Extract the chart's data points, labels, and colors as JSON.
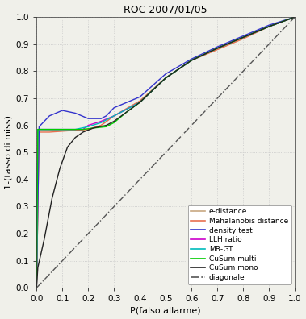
{
  "title": "ROC 2007/01/05",
  "xlabel": "P(falso allarme)",
  "ylabel": "1-(tasso di miss)",
  "xlim": [
    0,
    1
  ],
  "ylim": [
    0,
    1
  ],
  "xticks": [
    0,
    0.1,
    0.2,
    0.3,
    0.4,
    0.5,
    0.6,
    0.7,
    0.8,
    0.9,
    1
  ],
  "yticks": [
    0,
    0.1,
    0.2,
    0.3,
    0.4,
    0.5,
    0.6,
    0.7,
    0.8,
    0.9,
    1
  ],
  "curves": [
    {
      "key": "e_distance",
      "label": "e-distance",
      "color": "#c8a882",
      "lw": 1.0,
      "linestyle": "-",
      "points": [
        [
          0,
          0
        ],
        [
          0.01,
          0.58
        ],
        [
          0.2,
          0.585
        ],
        [
          0.25,
          0.6
        ],
        [
          0.3,
          0.635
        ],
        [
          0.4,
          0.69
        ],
        [
          0.5,
          0.775
        ],
        [
          0.6,
          0.84
        ],
        [
          0.7,
          0.88
        ],
        [
          0.8,
          0.92
        ],
        [
          0.9,
          0.965
        ],
        [
          1.0,
          1.0
        ]
      ]
    },
    {
      "key": "mahalanobis",
      "label": "Mahalanobis distance",
      "color": "#e87050",
      "lw": 1.0,
      "linestyle": "-",
      "points": [
        [
          0,
          0
        ],
        [
          0.01,
          0.575
        ],
        [
          0.05,
          0.575
        ],
        [
          0.2,
          0.585
        ],
        [
          0.25,
          0.6
        ],
        [
          0.3,
          0.635
        ],
        [
          0.4,
          0.69
        ],
        [
          0.5,
          0.775
        ],
        [
          0.6,
          0.84
        ],
        [
          0.7,
          0.88
        ],
        [
          0.8,
          0.92
        ],
        [
          0.9,
          0.965
        ],
        [
          1.0,
          1.0
        ]
      ]
    },
    {
      "key": "density",
      "label": "density test",
      "color": "#3333cc",
      "lw": 1.0,
      "linestyle": "-",
      "points": [
        [
          0,
          0
        ],
        [
          0.01,
          0.595
        ],
        [
          0.05,
          0.635
        ],
        [
          0.1,
          0.655
        ],
        [
          0.15,
          0.645
        ],
        [
          0.2,
          0.625
        ],
        [
          0.25,
          0.625
        ],
        [
          0.27,
          0.635
        ],
        [
          0.3,
          0.665
        ],
        [
          0.35,
          0.685
        ],
        [
          0.4,
          0.705
        ],
        [
          0.5,
          0.79
        ],
        [
          0.6,
          0.845
        ],
        [
          0.7,
          0.89
        ],
        [
          0.8,
          0.93
        ],
        [
          0.9,
          0.97
        ],
        [
          1.0,
          1.0
        ]
      ]
    },
    {
      "key": "llh",
      "label": "LLH ratio",
      "color": "#cc00cc",
      "lw": 1.0,
      "linestyle": "-",
      "points": [
        [
          0,
          0
        ],
        [
          0.005,
          0.585
        ],
        [
          0.1,
          0.585
        ],
        [
          0.18,
          0.585
        ],
        [
          0.2,
          0.6
        ],
        [
          0.25,
          0.615
        ],
        [
          0.3,
          0.635
        ],
        [
          0.35,
          0.66
        ],
        [
          0.4,
          0.685
        ],
        [
          0.5,
          0.775
        ],
        [
          0.6,
          0.84
        ],
        [
          0.7,
          0.885
        ],
        [
          0.8,
          0.925
        ],
        [
          0.9,
          0.965
        ],
        [
          1.0,
          1.0
        ]
      ]
    },
    {
      "key": "mbgt",
      "label": "MB-GT",
      "color": "#00bbbb",
      "lw": 1.0,
      "linestyle": "-",
      "points": [
        [
          0,
          0
        ],
        [
          0.005,
          0.585
        ],
        [
          0.1,
          0.585
        ],
        [
          0.15,
          0.585
        ],
        [
          0.2,
          0.595
        ],
        [
          0.25,
          0.61
        ],
        [
          0.3,
          0.635
        ],
        [
          0.35,
          0.66
        ],
        [
          0.4,
          0.685
        ],
        [
          0.5,
          0.775
        ],
        [
          0.6,
          0.84
        ],
        [
          0.7,
          0.885
        ],
        [
          0.8,
          0.925
        ],
        [
          0.9,
          0.965
        ],
        [
          1.0,
          1.0
        ]
      ]
    },
    {
      "key": "cusum_multi",
      "label": "CuSum multi",
      "color": "#00cc00",
      "lw": 1.0,
      "linestyle": "-",
      "points": [
        [
          0,
          0
        ],
        [
          0.005,
          0.585
        ],
        [
          0.18,
          0.585
        ],
        [
          0.22,
          0.59
        ],
        [
          0.27,
          0.595
        ],
        [
          0.3,
          0.61
        ],
        [
          0.35,
          0.65
        ],
        [
          0.4,
          0.685
        ],
        [
          0.5,
          0.775
        ],
        [
          0.6,
          0.84
        ],
        [
          0.7,
          0.885
        ],
        [
          0.8,
          0.925
        ],
        [
          0.9,
          0.965
        ],
        [
          1.0,
          1.0
        ]
      ]
    },
    {
      "key": "cusum_mono",
      "label": "CuSum mono",
      "color": "#222222",
      "lw": 1.0,
      "linestyle": "-",
      "points": [
        [
          0,
          0
        ],
        [
          0.005,
          0.075
        ],
        [
          0.03,
          0.18
        ],
        [
          0.06,
          0.33
        ],
        [
          0.09,
          0.44
        ],
        [
          0.12,
          0.52
        ],
        [
          0.15,
          0.555
        ],
        [
          0.18,
          0.575
        ],
        [
          0.22,
          0.59
        ],
        [
          0.27,
          0.6
        ],
        [
          0.3,
          0.615
        ],
        [
          0.35,
          0.65
        ],
        [
          0.4,
          0.685
        ],
        [
          0.5,
          0.775
        ],
        [
          0.6,
          0.84
        ],
        [
          0.7,
          0.885
        ],
        [
          0.8,
          0.925
        ],
        [
          0.9,
          0.965
        ],
        [
          1.0,
          1.0
        ]
      ]
    },
    {
      "key": "diagonal",
      "label": "diagonale",
      "color": "#555555",
      "lw": 1.0,
      "linestyle": "-.",
      "points": [
        [
          0,
          0
        ],
        [
          1,
          1
        ]
      ]
    }
  ],
  "grid_color": "#c8c8c8",
  "grid_linestyle": ":",
  "bg_color": "#f0f0ea",
  "plot_bg_color": "#f0f0ea",
  "title_fontsize": 9,
  "label_fontsize": 8,
  "tick_fontsize": 7.5,
  "legend_fontsize": 6.5,
  "legend_loc": "lower right"
}
